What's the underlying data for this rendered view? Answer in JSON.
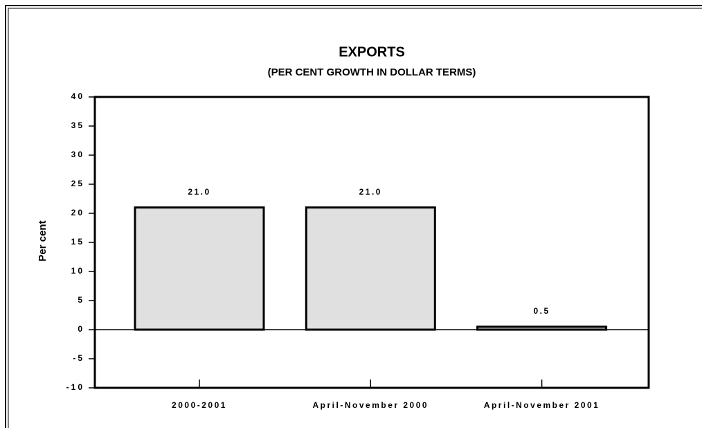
{
  "chart_data": {
    "type": "bar",
    "title": "EXPORTS",
    "subtitle": "(PER CENT GROWTH IN DOLLAR TERMS)",
    "y_label": "Per cent",
    "categories": [
      "2000-2001",
      "April-November 2000",
      "April-November 2001"
    ],
    "values": [
      21,
      21,
      0.5
    ],
    "value_labels": [
      "21.0",
      "21.0",
      "0.5"
    ],
    "color": "#e0e0e0",
    "ylim": [
      -10,
      40
    ],
    "yticks": [
      -10,
      -5,
      0,
      5,
      10,
      15,
      20,
      25,
      30,
      35,
      40
    ],
    "grid": false
  }
}
